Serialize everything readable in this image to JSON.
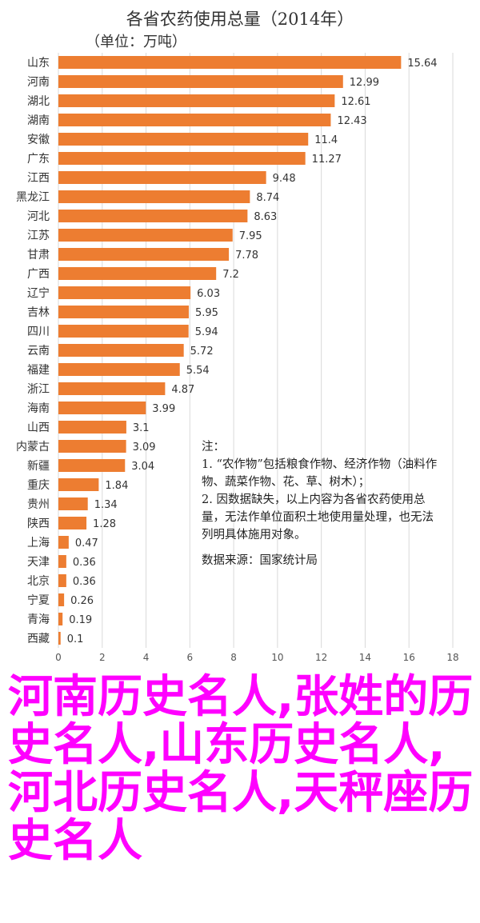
{
  "chart_data": {
    "type": "bar",
    "orientation": "horizontal",
    "title": "各省农药使用总量（2014年）",
    "subtitle": "（单位：万吨）",
    "categories": [
      "山东",
      "河南",
      "湖北",
      "湖南",
      "安徽",
      "广东",
      "江西",
      "黑龙江",
      "河北",
      "江苏",
      "甘肃",
      "广西",
      "辽宁",
      "吉林",
      "四川",
      "云南",
      "福建",
      "浙江",
      "海南",
      "山西",
      "内蒙古",
      "新疆",
      "重庆",
      "贵州",
      "陕西",
      "上海",
      "天津",
      "北京",
      "宁夏",
      "青海",
      "西藏"
    ],
    "values": [
      15.64,
      12.99,
      12.61,
      12.43,
      11.4,
      11.27,
      9.48,
      8.74,
      8.63,
      7.95,
      7.78,
      7.2,
      6.03,
      5.95,
      5.94,
      5.72,
      5.54,
      4.87,
      3.99,
      3.1,
      3.09,
      3.04,
      1.84,
      1.34,
      1.28,
      0.47,
      0.36,
      0.36,
      0.26,
      0.19,
      0.1
    ],
    "xticks": [
      0,
      2,
      4,
      6,
      8,
      10,
      12,
      14,
      16,
      18
    ],
    "xlim": [
      0,
      18
    ],
    "grid": true,
    "bar_color": "#ed7d31"
  },
  "note": {
    "heading": "注：",
    "lines": [
      "1. “农作物”包括粮食作物、经济作物（油料作物、蔬菜作物、花、草、树木）；",
      "2. 因数据缺失，以上内容为各省农药使用总量，无法作单位面积土地使用量处理，也无法列明具体施用对象。"
    ],
    "source": "数据来源：国家统计局"
  },
  "overlay_text": "河南历史名人,张姓的历史名人,山东历史名人,河北历史名人,天秤座历史名人"
}
